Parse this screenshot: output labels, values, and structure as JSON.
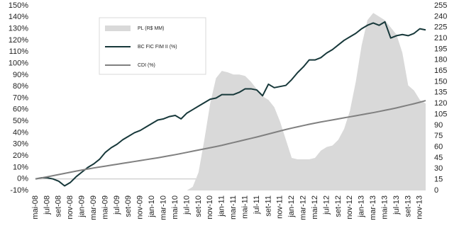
{
  "chart_data": {
    "type": "combo",
    "categories": [
      "mai-08",
      null,
      "jul-08",
      null,
      "set-08",
      null,
      "nov-08",
      null,
      "jan-09",
      null,
      "mar-09",
      null,
      "mai-09",
      null,
      "jul-09",
      null,
      "set-09",
      null,
      "nov-09",
      null,
      "jan-10",
      null,
      "mar-10",
      null,
      "mai-10",
      null,
      "jul-10",
      null,
      "set-10",
      null,
      "nov-10",
      null,
      "jan-11",
      null,
      "mar-11",
      null,
      "mai-11",
      null,
      "jul-11",
      null,
      "set-11",
      null,
      "nov-11",
      null,
      "jan-12",
      null,
      "mar-12",
      null,
      "mai-12",
      null,
      "jul-12",
      null,
      "set-12",
      null,
      "nov-12",
      null,
      "jan-13",
      null,
      "mar-13",
      null,
      "mai-13",
      null,
      "jul-13",
      null,
      "set-13",
      null,
      "nov-13",
      null
    ],
    "series": [
      {
        "name": "PL (R$ MM)",
        "kind": "area",
        "axis": "y2",
        "color": "#d9d9d9",
        "values": [
          0,
          0,
          0,
          0,
          0,
          0,
          0,
          0,
          0,
          0,
          0,
          0,
          0,
          0,
          0,
          0,
          0,
          0,
          0,
          0,
          0,
          0,
          0,
          0,
          0,
          0,
          0,
          5,
          25,
          70,
          120,
          155,
          165,
          163,
          160,
          160,
          158,
          150,
          140,
          130,
          125,
          115,
          95,
          70,
          45,
          43,
          43,
          43,
          45,
          55,
          60,
          62,
          70,
          85,
          110,
          150,
          200,
          235,
          245,
          240,
          235,
          225,
          215,
          190,
          145,
          138,
          125,
          120
        ]
      },
      {
        "name": "BC FIC FIM II (%)",
        "kind": "line",
        "color": "#17383a",
        "values": [
          0,
          1,
          1,
          0,
          -2,
          -6,
          -3,
          2,
          6,
          10,
          13,
          17,
          23,
          27,
          30,
          34,
          37,
          40,
          42,
          45,
          48,
          51,
          52,
          54,
          55,
          52,
          57,
          60,
          63,
          66,
          69,
          70,
          73,
          73,
          73,
          75,
          78,
          78,
          77,
          72,
          82,
          79,
          80,
          81,
          86,
          92,
          97,
          103,
          103,
          105,
          109,
          112,
          116,
          120,
          123,
          126,
          130,
          133,
          135,
          133,
          136,
          122,
          124,
          125,
          124,
          126,
          130,
          129
        ]
      },
      {
        "name": "CDI (%)",
        "kind": "line",
        "color": "#808080",
        "values": [
          0,
          0.9,
          1.8,
          2.8,
          3.8,
          4.8,
          5.8,
          6.8,
          7.7,
          8.6,
          9.5,
          10.3,
          11.1,
          11.9,
          12.7,
          13.5,
          14.3,
          15.1,
          15.9,
          16.7,
          17.5,
          18.3,
          19.2,
          20.1,
          21,
          22,
          23,
          24,
          25,
          26,
          27,
          28,
          29.1,
          30.3,
          31.5,
          32.7,
          33.9,
          35.1,
          36.3,
          37.6,
          38.9,
          40.2,
          41.5,
          42.8,
          44,
          45.1,
          46.2,
          47.3,
          48.3,
          49.3,
          50.2,
          51.1,
          52,
          52.9,
          53.8,
          54.7,
          55.6,
          56.5,
          57.4,
          58.4,
          59.4,
          60.4,
          61.5,
          62.7,
          63.9,
          65.1,
          66.4,
          67.8
        ]
      }
    ],
    "ylim": [
      -10,
      150
    ],
    "yticks": [
      {
        "value": -10,
        "label": "-10%"
      },
      {
        "value": 0,
        "label": "0%"
      },
      {
        "value": 10,
        "label": "10%"
      },
      {
        "value": 20,
        "label": "20%"
      },
      {
        "value": 30,
        "label": "30%"
      },
      {
        "value": 40,
        "label": "40%"
      },
      {
        "value": 50,
        "label": "50%"
      },
      {
        "value": 60,
        "label": "60%"
      },
      {
        "value": 70,
        "label": "70%"
      },
      {
        "value": 80,
        "label": "80%"
      },
      {
        "value": 90,
        "label": "90%"
      },
      {
        "value": 100,
        "label": "100%"
      },
      {
        "value": 110,
        "label": "110%"
      },
      {
        "value": 120,
        "label": "120%"
      },
      {
        "value": 130,
        "label": "130%"
      },
      {
        "value": 140,
        "label": "140%"
      },
      {
        "value": 150,
        "label": "150%"
      }
    ],
    "y2lim": [
      0,
      255
    ],
    "y2ticks": [
      0,
      15,
      30,
      45,
      60,
      75,
      90,
      105,
      120,
      135,
      150,
      165,
      180,
      195,
      210,
      225,
      240,
      255
    ],
    "grid": false
  }
}
